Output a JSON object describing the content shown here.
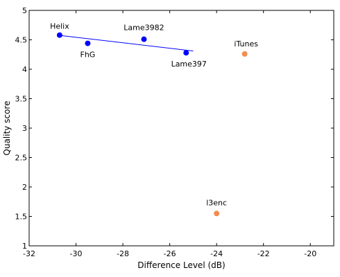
{
  "chart_data": {
    "type": "scatter",
    "xlabel": "Difference Level (dB)",
    "ylabel": "Quality score",
    "xlim": [
      -32,
      -19
    ],
    "ylim": [
      1,
      5
    ],
    "xticks": [
      "-32",
      "-30",
      "-28",
      "-26",
      "-24",
      "-22",
      "-20"
    ],
    "yticks": [
      "1",
      "1.5",
      "2",
      "2.5",
      "3",
      "3.5",
      "4",
      "4.5",
      "5"
    ],
    "grid": false,
    "series": [
      {
        "color": "#0000ff",
        "points": [
          {
            "label": "Helix",
            "x": -30.7,
            "y": 4.58
          },
          {
            "label": "FhG",
            "x": -29.5,
            "y": 4.44
          },
          {
            "label": "Lame3982",
            "x": -27.1,
            "y": 4.51
          },
          {
            "label": "Lame397",
            "x": -25.3,
            "y": 4.28
          }
        ]
      },
      {
        "color": "#f28c4f",
        "points": [
          {
            "label": "iTunes",
            "x": -22.8,
            "y": 4.26
          },
          {
            "label": "l3enc",
            "x": -24.0,
            "y": 1.55
          }
        ]
      }
    ],
    "fit_line": {
      "color": "#0000ff",
      "x": [
        -30.8,
        -25.0
      ],
      "y": [
        4.58,
        4.31
      ]
    }
  }
}
